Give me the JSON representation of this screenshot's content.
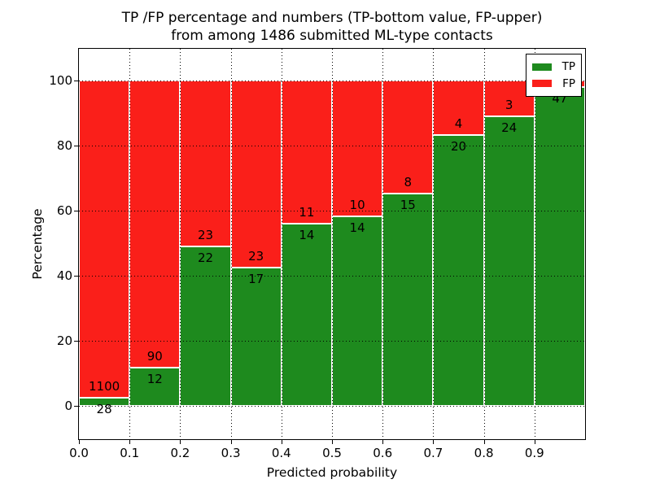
{
  "title": {
    "line1": "TP /FP percentage and numbers (TP-bottom value, FP-upper)",
    "line2": "from among 1486 submitted ML-type contacts"
  },
  "axes": {
    "xlabel": "Predicted probability",
    "ylabel": "Percentage"
  },
  "legend": {
    "items": [
      {
        "label": "TP",
        "color": "#1e8a1e"
      },
      {
        "label": "FP",
        "color": "#fa1f1a"
      }
    ]
  },
  "chart_data": {
    "type": "bar",
    "stacked": true,
    "normalized": "each bin stacked to 100%",
    "title": "TP /FP percentage and numbers (TP-bottom value, FP-upper) from among 1486 submitted ML-type contacts",
    "xlabel": "Predicted probability",
    "ylabel": "Percentage",
    "total_contacts": 1486,
    "bin_edges": [
      0.0,
      0.1,
      0.2,
      0.3,
      0.4,
      0.5,
      0.6,
      0.7,
      0.8,
      0.9,
      1.0
    ],
    "series": [
      {
        "name": "TP",
        "color": "#1e8a1e",
        "counts": [
          28,
          12,
          22,
          17,
          14,
          14,
          15,
          20,
          24,
          47
        ]
      },
      {
        "name": "FP",
        "color": "#fa1f1a",
        "counts": [
          1100,
          90,
          23,
          23,
          11,
          10,
          8,
          4,
          3,
          1
        ]
      }
    ],
    "tp_percent": [
      2.48,
      11.76,
      48.89,
      42.5,
      56.0,
      58.33,
      65.22,
      83.33,
      88.89,
      97.92
    ],
    "xticks": [
      0.0,
      0.1,
      0.2,
      0.3,
      0.4,
      0.5,
      0.6,
      0.7,
      0.8,
      0.9
    ],
    "yticks": [
      0,
      20,
      40,
      60,
      80,
      100
    ],
    "xlim": [
      0.0,
      1.0
    ],
    "ylim": [
      -10.25,
      109.75
    ],
    "grid": "dotted, both axes",
    "legend_position": "upper right",
    "last_bin_fp_label_hidden_behind_legend": true
  }
}
